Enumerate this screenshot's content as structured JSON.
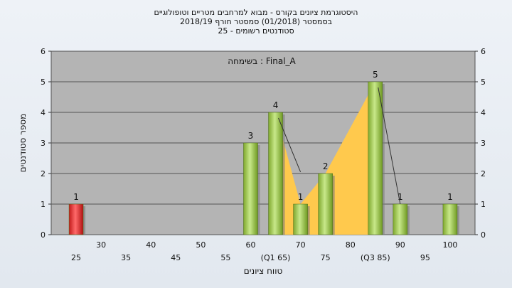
{
  "titles": {
    "line1": "היסטוגרמת ציונים בקורס - מבוא למרחבים מטריים וטופולוגיים",
    "line2": "בסמסטר  (01/2018)  סמסטר חורף 2018/19",
    "line3": "סטודנטים רשומים - 25"
  },
  "legend_text": "בשימחה : Final_A",
  "chart_data": {
    "type": "bar",
    "xlabel": "טווח ציונים",
    "ylabel": "מספר סטודנטים",
    "ylim": [
      0,
      6
    ],
    "yticks": [
      0,
      1,
      2,
      3,
      4,
      5,
      6
    ],
    "x_tick_labels_lower": [
      "25",
      "35",
      "45",
      "55",
      "(Q1 65)",
      "75",
      "(Q3 85)",
      "95"
    ],
    "x_tick_labels_upper": [
      "30",
      "40",
      "50",
      "60",
      "70",
      "80",
      "90",
      "100"
    ],
    "bars": [
      {
        "x": 25,
        "value": 1,
        "label": "1",
        "highlight": true
      },
      {
        "x": 60,
        "value": 3,
        "label": "3"
      },
      {
        "x": 65,
        "value": 4,
        "label": "4"
      },
      {
        "x": 70,
        "value": 1,
        "label": "1"
      },
      {
        "x": 75,
        "value": 2,
        "label": "2"
      },
      {
        "x": 85,
        "value": 5,
        "label": "5"
      },
      {
        "x": 90,
        "value": 1,
        "label": "1"
      },
      {
        "x": 100,
        "value": 1,
        "label": "1"
      }
    ],
    "iqr_region": {
      "x_start": 65,
      "x_end": 85
    },
    "colors": {
      "bar": "#9cc84a",
      "highlight_bar": "#e23a3a",
      "fill_area": "#ffc94d",
      "plot_bg": "#b4b4b4"
    }
  }
}
